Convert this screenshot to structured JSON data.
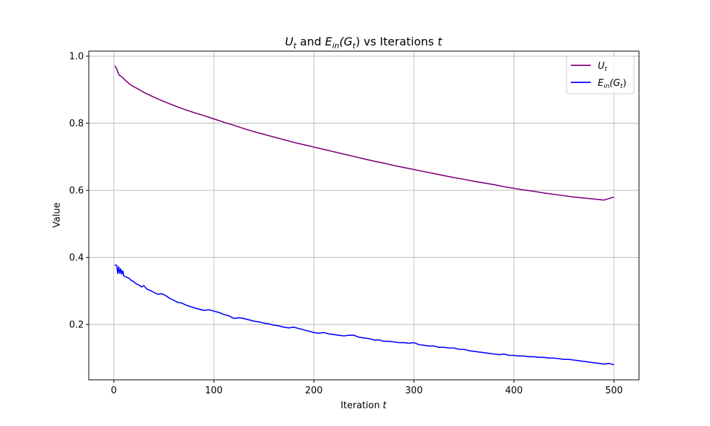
{
  "chart_data": {
    "type": "line",
    "title": {
      "line1_symbol": "U",
      "line1_sub": "t",
      "connector": " and ",
      "line2_symbol": "E",
      "line2_sub": "in",
      "line2_arg_open": "(G",
      "line2_arg_sub": "t",
      "line2_arg_close": ")",
      "suffix": " vs Iterations ",
      "suffix_var": "t"
    },
    "xlabel": {
      "text": "Iteration ",
      "var": "t"
    },
    "ylabel": "Value",
    "xlim": [
      -25,
      525
    ],
    "ylim": [
      0.035,
      1.015
    ],
    "xticks": [
      0,
      100,
      200,
      300,
      400,
      500
    ],
    "yticks": [
      0.2,
      0.4,
      0.6,
      0.8,
      1.0
    ],
    "ytick_labels": [
      "0.2",
      "0.4",
      "0.6",
      "0.8",
      "1.0"
    ],
    "grid": true,
    "legend_placement": "top-right",
    "series": [
      {
        "name": {
          "symbol": "U",
          "sub": "t"
        },
        "color": "#800080",
        "x": [
          1,
          3,
          5,
          8,
          12,
          16,
          20,
          25,
          30,
          40,
          50,
          60,
          70,
          80,
          90,
          100,
          110,
          120,
          130,
          140,
          150,
          160,
          170,
          180,
          190,
          200,
          210,
          220,
          230,
          240,
          250,
          260,
          270,
          280,
          290,
          300,
          310,
          320,
          330,
          340,
          350,
          360,
          370,
          380,
          390,
          400,
          410,
          420,
          430,
          440,
          450,
          460,
          470,
          480,
          490,
          500
        ],
        "y": [
          0.971,
          0.962,
          0.945,
          0.938,
          0.927,
          0.916,
          0.909,
          0.901,
          0.892,
          0.878,
          0.865,
          0.853,
          0.842,
          0.832,
          0.823,
          0.813,
          0.803,
          0.794,
          0.784,
          0.775,
          0.767,
          0.759,
          0.751,
          0.743,
          0.736,
          0.729,
          0.722,
          0.715,
          0.708,
          0.701,
          0.694,
          0.687,
          0.681,
          0.674,
          0.668,
          0.662,
          0.656,
          0.65,
          0.644,
          0.638,
          0.633,
          0.627,
          0.622,
          0.617,
          0.611,
          0.606,
          0.601,
          0.597,
          0.592,
          0.588,
          0.584,
          0.58,
          0.577,
          0.574,
          0.571,
          0.58
        ]
      },
      {
        "name": {
          "symbol": "E",
          "sub": "in",
          "arg_open": "(G",
          "arg_sub": "t",
          "arg_close": ")"
        },
        "color": "#0000ff",
        "x": [
          1,
          3,
          4,
          5,
          6,
          7,
          8,
          9,
          10,
          12,
          14,
          16,
          18,
          20,
          22,
          25,
          28,
          30,
          33,
          36,
          40,
          44,
          48,
          52,
          56,
          60,
          64,
          68,
          72,
          76,
          80,
          85,
          90,
          95,
          100,
          105,
          110,
          115,
          120,
          125,
          130,
          135,
          140,
          145,
          150,
          155,
          160,
          165,
          170,
          175,
          180,
          185,
          190,
          195,
          200,
          205,
          210,
          215,
          220,
          225,
          230,
          235,
          240,
          245,
          250,
          255,
          260,
          265,
          270,
          275,
          280,
          285,
          290,
          295,
          300,
          305,
          310,
          315,
          320,
          325,
          330,
          335,
          340,
          345,
          350,
          355,
          360,
          365,
          370,
          375,
          380,
          385,
          390,
          395,
          400,
          405,
          410,
          415,
          420,
          425,
          430,
          435,
          440,
          445,
          450,
          455,
          460,
          465,
          470,
          475,
          480,
          485,
          490,
          495,
          500
        ],
        "y": [
          0.378,
          0.376,
          0.352,
          0.372,
          0.352,
          0.366,
          0.35,
          0.36,
          0.345,
          0.342,
          0.34,
          0.336,
          0.33,
          0.328,
          0.322,
          0.318,
          0.312,
          0.316,
          0.306,
          0.302,
          0.296,
          0.29,
          0.292,
          0.286,
          0.278,
          0.272,
          0.266,
          0.264,
          0.258,
          0.254,
          0.25,
          0.246,
          0.242,
          0.244,
          0.24,
          0.236,
          0.23,
          0.226,
          0.218,
          0.22,
          0.218,
          0.214,
          0.21,
          0.208,
          0.204,
          0.202,
          0.198,
          0.196,
          0.192,
          0.19,
          0.192,
          0.188,
          0.184,
          0.18,
          0.176,
          0.174,
          0.176,
          0.172,
          0.17,
          0.168,
          0.166,
          0.168,
          0.168,
          0.162,
          0.16,
          0.158,
          0.154,
          0.154,
          0.15,
          0.15,
          0.148,
          0.146,
          0.146,
          0.144,
          0.146,
          0.14,
          0.138,
          0.136,
          0.136,
          0.132,
          0.132,
          0.13,
          0.13,
          0.126,
          0.126,
          0.122,
          0.12,
          0.118,
          0.116,
          0.114,
          0.112,
          0.11,
          0.112,
          0.108,
          0.108,
          0.106,
          0.106,
          0.104,
          0.104,
          0.102,
          0.102,
          0.1,
          0.1,
          0.098,
          0.096,
          0.096,
          0.094,
          0.092,
          0.09,
          0.088,
          0.086,
          0.084,
          0.082,
          0.084,
          0.08
        ]
      }
    ]
  }
}
